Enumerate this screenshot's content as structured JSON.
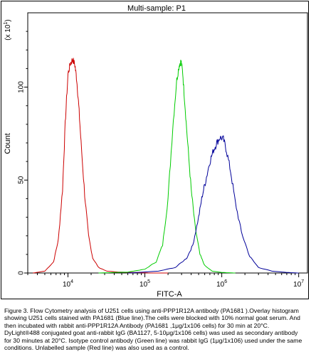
{
  "chart_data": {
    "type": "line",
    "title": "Multi-sample: P1",
    "xlabel": "FITC-A",
    "ylabel": "Count",
    "y_multiplier_label": "(x 10",
    "y_multiplier_exp": "1",
    "x_scale": "log",
    "xlim": [
      3000,
      13000000
    ],
    "ylim": [
      0,
      140
    ],
    "x_ticks": [
      {
        "value": 10000,
        "base": "10",
        "exp": "4"
      },
      {
        "value": 100000,
        "base": "10",
        "exp": "5"
      },
      {
        "value": 1000000,
        "base": "10",
        "exp": "6"
      },
      {
        "value": 10000000,
        "base": "10",
        "exp": "7"
      }
    ],
    "y_ticks": [
      {
        "value": 0,
        "label": "0"
      },
      {
        "value": 50,
        "label": "50"
      },
      {
        "value": 100,
        "label": "100"
      }
    ],
    "grid": false,
    "legend": "none",
    "series": [
      {
        "color": "#cc0000",
        "x": [
          3500,
          5000,
          6500,
          7500,
          8500,
          9200,
          10000,
          10800,
          11500,
          12300,
          13000,
          13800,
          14800,
          16500,
          18500,
          21000,
          25000,
          32000,
          45000,
          70000,
          120000,
          200000
        ],
        "y": [
          0,
          1,
          6,
          18,
          45,
          80,
          107,
          113,
          115,
          112,
          104,
          90,
          70,
          42,
          20,
          8,
          3,
          1,
          0.5,
          0.3,
          0,
          0
        ]
      },
      {
        "color": "#00cc00",
        "x": [
          25000,
          60000,
          100000,
          140000,
          170000,
          200000,
          230000,
          260000,
          280000,
          295000,
          310000,
          330000,
          360000,
          400000,
          450000,
          520000,
          600000,
          750000,
          1000000,
          1500000
        ],
        "y": [
          0,
          0.5,
          2,
          6,
          15,
          40,
          78,
          104,
          112,
          114,
          108,
          92,
          70,
          45,
          25,
          10,
          4,
          1,
          0.3,
          0
        ]
      },
      {
        "color": "#000099",
        "x": [
          60000,
          150000,
          250000,
          350000,
          420000,
          500000,
          560000,
          620000,
          700000,
          780000,
          860000,
          950000,
          1050000,
          1150000,
          1300000,
          1500000,
          1800000,
          2300000,
          3000000,
          4500000,
          7000000,
          10000000
        ],
        "y": [
          0,
          1,
          3,
          8,
          15,
          30,
          42,
          50,
          60,
          66,
          70,
          73,
          72,
          66,
          55,
          38,
          22,
          9,
          3,
          1,
          0.3,
          0
        ]
      }
    ]
  },
  "caption": "Figure 3. Flow Cytometry analysis of U251 cells using anti-PPP1R12A antibody (PA1681 ).Overlay histogram showing U251 cells stained with PA1681 (Blue line).The cells were blocked with 10% normal goat serum. And then incubated with rabbit anti-PPP1R12A Antibody (PA1681 ,1μg/1x106 cells) for 30 min at 20°C. DyLight®488 conjugated goat anti-rabbit IgG (BA1127, 5-10μg/1x106 cells) was used as secondary antibody for 30 minutes at 20°C. Isotype control antibody (Green line) was rabbit IgG (1μg/1x106) used under the same conditions. Unlabelled sample (Red line) was also used as a control."
}
